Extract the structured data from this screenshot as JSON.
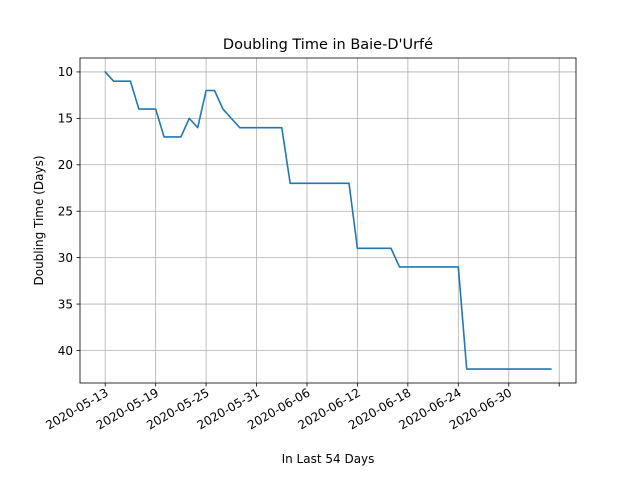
{
  "chart_data": {
    "type": "line",
    "title": "Doubling Time in  Baie-D'Urfé",
    "xlabel": "In Last 54 Days",
    "ylabel": "Doubling Time (Days)",
    "y_inverted": true,
    "ylim": [
      43.5,
      8.5
    ],
    "yticks": [
      10,
      15,
      20,
      25,
      30,
      35,
      40
    ],
    "xlim": [
      "2020-05-10",
      "2020-07-08"
    ],
    "xticks": [
      "2020-05-13",
      "2020-05-19",
      "2020-05-25",
      "2020-05-31",
      "2020-06-06",
      "2020-06-12",
      "2020-06-18",
      "2020-06-24",
      "2020-06-30",
      "2020-07-06"
    ],
    "xtick_labels": [
      "2020-05-13",
      "2020-05-19",
      "2020-05-25",
      "2020-05-31",
      "2020-06-06",
      "2020-06-12",
      "2020-06-18",
      "2020-06-24",
      "2020-06-30",
      ""
    ],
    "grid": true,
    "series": [
      {
        "color": "#1f77b4",
        "points": [
          [
            "2020-05-13",
            10
          ],
          [
            "2020-05-14",
            11
          ],
          [
            "2020-05-15",
            11
          ],
          [
            "2020-05-16",
            11
          ],
          [
            "2020-05-17",
            14
          ],
          [
            "2020-05-18",
            14
          ],
          [
            "2020-05-19",
            14
          ],
          [
            "2020-05-20",
            17
          ],
          [
            "2020-05-21",
            17
          ],
          [
            "2020-05-22",
            17
          ],
          [
            "2020-05-23",
            15
          ],
          [
            "2020-05-24",
            16
          ],
          [
            "2020-05-25",
            12
          ],
          [
            "2020-05-26",
            12
          ],
          [
            "2020-05-27",
            14
          ],
          [
            "2020-05-28",
            15
          ],
          [
            "2020-05-29",
            16
          ],
          [
            "2020-05-30",
            16
          ],
          [
            "2020-05-31",
            16
          ],
          [
            "2020-06-01",
            16
          ],
          [
            "2020-06-02",
            16
          ],
          [
            "2020-06-03",
            16
          ],
          [
            "2020-06-04",
            22
          ],
          [
            "2020-06-05",
            22
          ],
          [
            "2020-06-06",
            22
          ],
          [
            "2020-06-07",
            22
          ],
          [
            "2020-06-08",
            22
          ],
          [
            "2020-06-09",
            22
          ],
          [
            "2020-06-10",
            22
          ],
          [
            "2020-06-11",
            22
          ],
          [
            "2020-06-12",
            29
          ],
          [
            "2020-06-13",
            29
          ],
          [
            "2020-06-14",
            29
          ],
          [
            "2020-06-15",
            29
          ],
          [
            "2020-06-16",
            29
          ],
          [
            "2020-06-17",
            31
          ],
          [
            "2020-06-18",
            31
          ],
          [
            "2020-06-19",
            31
          ],
          [
            "2020-06-20",
            31
          ],
          [
            "2020-06-21",
            31
          ],
          [
            "2020-06-22",
            31
          ],
          [
            "2020-06-23",
            31
          ],
          [
            "2020-06-24",
            31
          ],
          [
            "2020-06-25",
            42
          ],
          [
            "2020-06-26",
            42
          ],
          [
            "2020-06-27",
            42
          ],
          [
            "2020-06-28",
            42
          ],
          [
            "2020-06-29",
            42
          ],
          [
            "2020-06-30",
            42
          ],
          [
            "2020-07-01",
            42
          ],
          [
            "2020-07-02",
            42
          ],
          [
            "2020-07-03",
            42
          ],
          [
            "2020-07-04",
            42
          ],
          [
            "2020-07-05",
            42
          ]
        ]
      }
    ]
  }
}
